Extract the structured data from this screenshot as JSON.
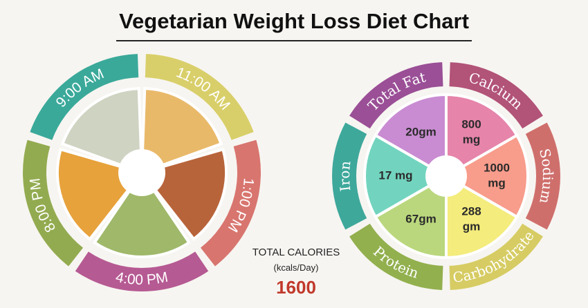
{
  "title": "Vegetarian Weight Loss Diet Chart",
  "meal_times": [
    {
      "label": "9:00 AM"
    },
    {
      "label": "11:00 AM"
    },
    {
      "label": "1:00 PM"
    },
    {
      "label": "4:00 PM"
    },
    {
      "label": "8:00 PM"
    }
  ],
  "nutrients": [
    {
      "name": "Total Fat",
      "amount": [
        "20gm"
      ]
    },
    {
      "name": "Calcium",
      "amount": [
        "800",
        "mg"
      ]
    },
    {
      "name": "Sodium",
      "amount": [
        "1000",
        "mg"
      ]
    },
    {
      "name": "Carbohydrate",
      "amount": [
        "288",
        "gm"
      ]
    },
    {
      "name": "Protein",
      "amount": [
        "67gm"
      ]
    },
    {
      "name": "Iron",
      "amount": [
        "17 mg"
      ]
    }
  ],
  "total_calories": {
    "label": "TOTAL CALORIES",
    "unit": "(kcals/Day)",
    "value": "1600"
  }
}
